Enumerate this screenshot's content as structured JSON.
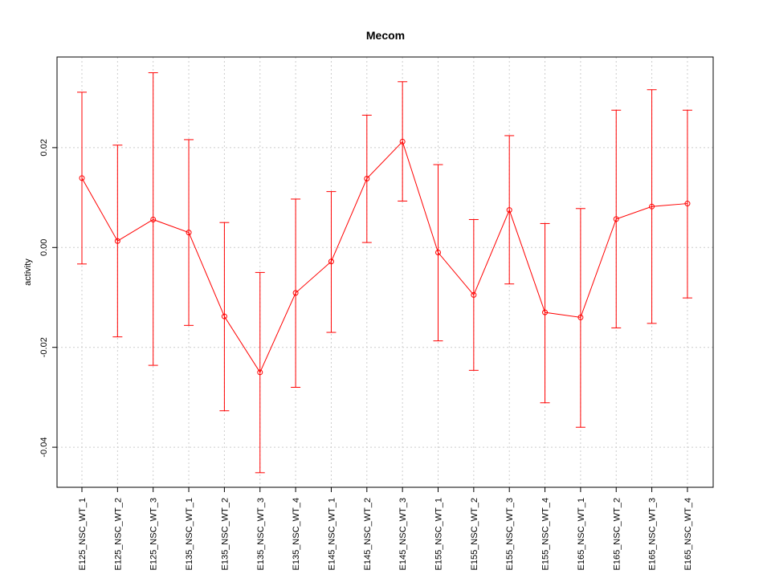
{
  "chart_data": {
    "type": "line",
    "title": "Mecom",
    "xlabel": "",
    "ylabel": "activity",
    "ylim": [
      -0.048,
      0.038
    ],
    "yticks": [
      -0.04,
      -0.02,
      0.0,
      0.02
    ],
    "ytick_labels": [
      "-0.04",
      "-0.02",
      "0.00",
      "0.02"
    ],
    "grid": true,
    "color": "#ff0000",
    "categories": [
      "E125_NSC_WT_1",
      "E125_NSC_WT_2",
      "E125_NSC_WT_3",
      "E135_NSC_WT_1",
      "E135_NSC_WT_2",
      "E135_NSC_WT_3",
      "E135_NSC_WT_4",
      "E145_NSC_WT_1",
      "E145_NSC_WT_2",
      "E145_NSC_WT_3",
      "E155_NSC_WT_1",
      "E155_NSC_WT_2",
      "E155_NSC_WT_3",
      "E155_NSC_WT_4",
      "E165_NSC_WT_1",
      "E165_NSC_WT_2",
      "E165_NSC_WT_3",
      "E165_NSC_WT_4"
    ],
    "series": [
      {
        "values": [
          0.0139,
          0.0013,
          0.0056,
          0.003,
          -0.0138,
          -0.025,
          -0.0091,
          -0.0028,
          0.0138,
          0.0212,
          -0.001,
          -0.0095,
          0.0075,
          -0.013,
          -0.014,
          0.0057,
          0.0082,
          0.0088
        ],
        "upper": [
          0.0311,
          0.0205,
          0.035,
          0.0216,
          0.005,
          -0.005,
          0.0097,
          0.0112,
          0.0265,
          0.0332,
          0.0166,
          0.0056,
          0.0224,
          0.0048,
          0.0078,
          0.0275,
          0.0316,
          0.0275
        ],
        "lower": [
          -0.0033,
          -0.0179,
          -0.0236,
          -0.0156,
          -0.0327,
          -0.0451,
          -0.028,
          -0.017,
          0.001,
          0.0093,
          -0.0187,
          -0.0246,
          -0.0073,
          -0.0311,
          -0.036,
          -0.0161,
          -0.0152,
          -0.0101
        ]
      }
    ]
  }
}
